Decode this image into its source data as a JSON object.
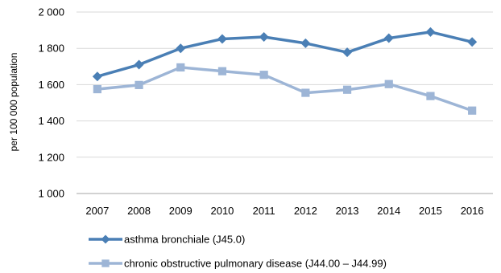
{
  "chart_data": {
    "type": "line",
    "categories": [
      "2007",
      "2008",
      "2009",
      "2010",
      "2011",
      "2012",
      "2013",
      "2014",
      "2015",
      "2016"
    ],
    "series": [
      {
        "name": "asthma bronchiale (J45.0)",
        "values": [
          1645,
          1710,
          1800,
          1852,
          1863,
          1828,
          1778,
          1856,
          1890,
          1835
        ],
        "color": "#4a7fb5",
        "marker": "diamond"
      },
      {
        "name": "chronic obstructive pulmonary disease (J44.00 – J44.99)",
        "values": [
          1575,
          1598,
          1695,
          1674,
          1654,
          1555,
          1572,
          1603,
          1537,
          1457
        ],
        "color": "#9db5d6",
        "marker": "square"
      }
    ],
    "ylabel": "per 100 000 population",
    "xlabel": "",
    "ylim": [
      1000,
      2000
    ],
    "yticks": [
      1000,
      1200,
      1400,
      1600,
      1800,
      2000
    ],
    "ytick_labels": [
      "1 000",
      "1 200",
      "1 400",
      "1 600",
      "1 800",
      "2 000"
    ],
    "grid": true,
    "legend_position": "bottom"
  }
}
